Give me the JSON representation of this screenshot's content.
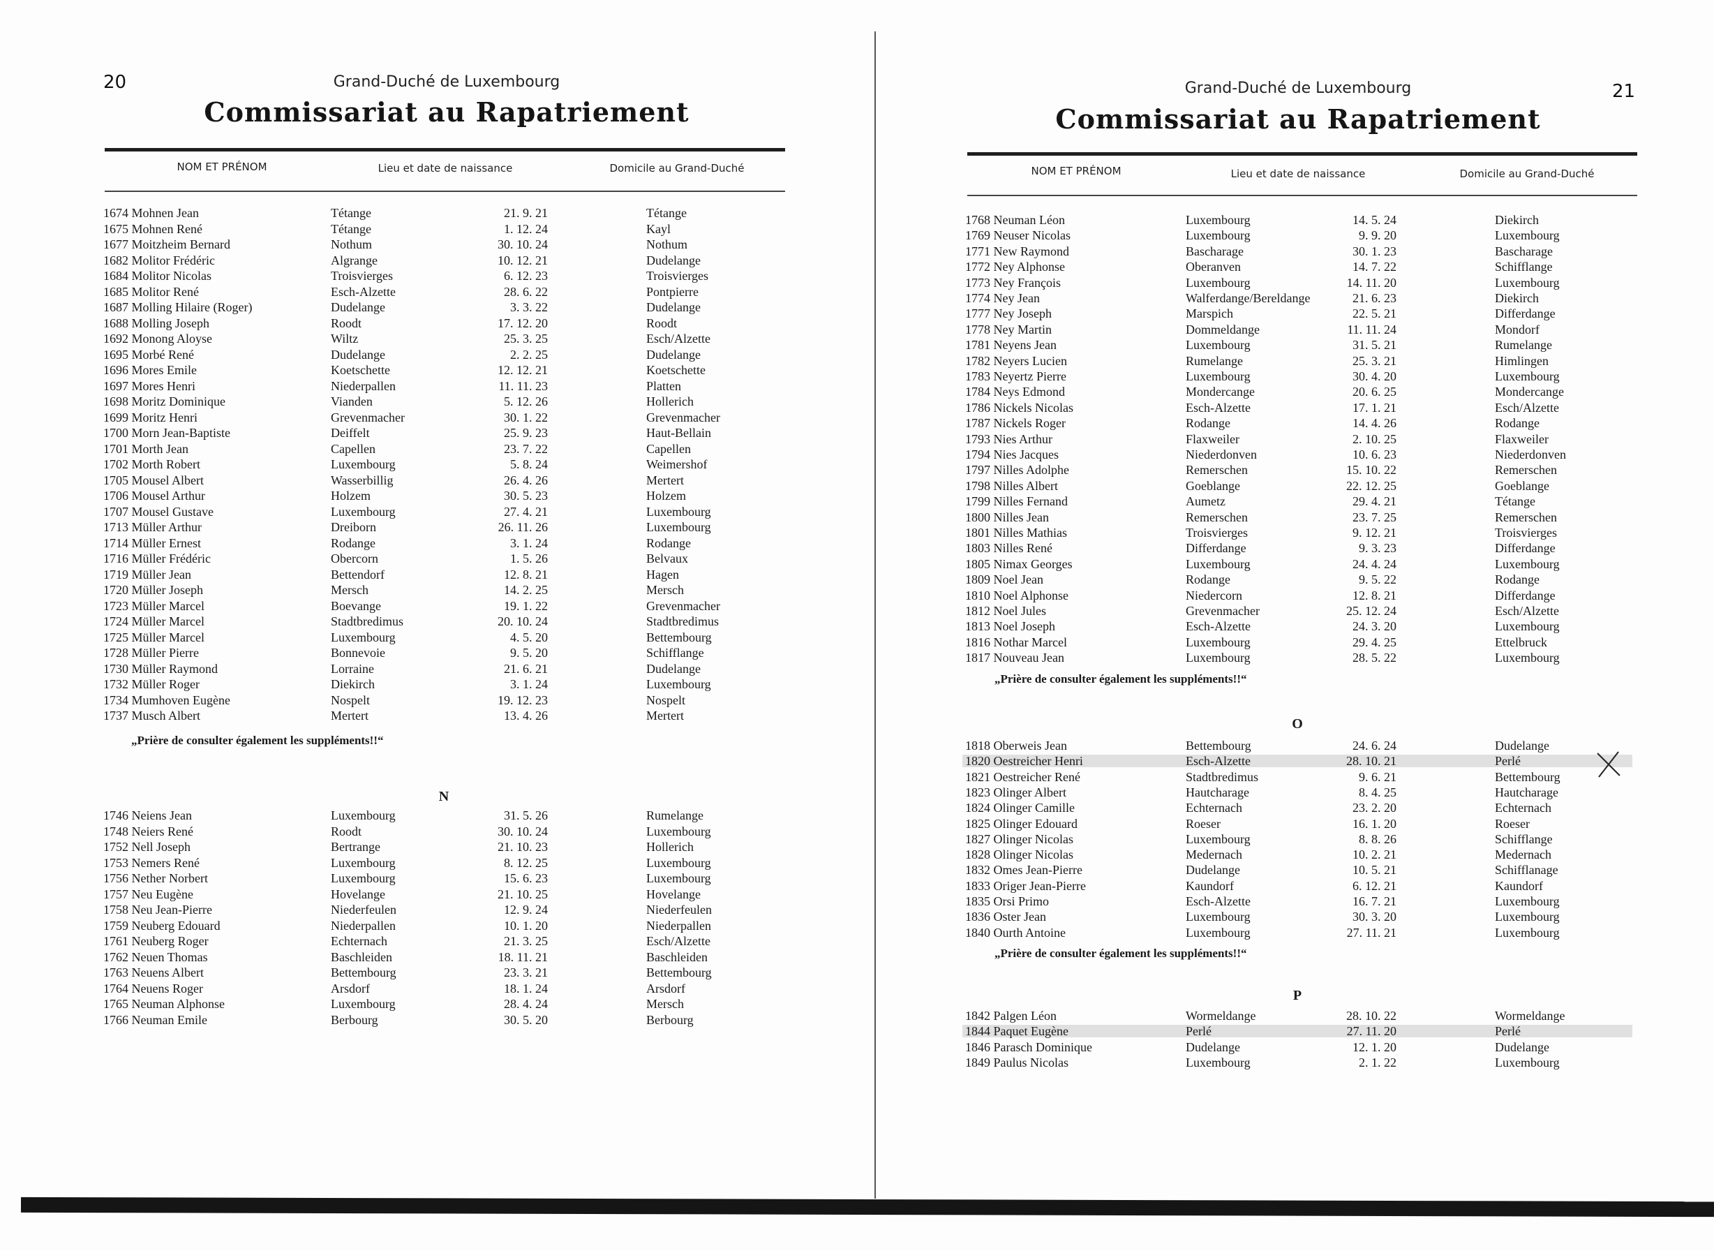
{
  "left_page": {
    "page_number": "20",
    "subtitle": "Grand-Duché de Luxembourg",
    "title": "Commissariat au Rapatriement",
    "columns": [
      "NOM ET PRÉNOM",
      "Lieu et date de naissance",
      "Domicile au Grand-Duché"
    ],
    "sections": [
      {
        "letter": "",
        "note": "„Prière de consulter également les suppléments!!“",
        "rows": [
          [
            "1674 Mohnen Jean",
            "Tétange",
            "21. 9. 21",
            "Tétange"
          ],
          [
            "1675 Mohnen René",
            "Tétange",
            "1. 12. 24",
            "Kayl"
          ],
          [
            "1677 Moitzheim Bernard",
            "Nothum",
            "30. 10. 24",
            "Nothum"
          ],
          [
            "1682 Molitor Frédéric",
            "Algrange",
            "10. 12. 21",
            "Dudelange"
          ],
          [
            "1684 Molitor Nicolas",
            "Troisvierges",
            "6. 12. 23",
            "Troisvierges"
          ],
          [
            "1685 Molitor René",
            "Esch-Alzette",
            "28. 6. 22",
            "Pontpierre"
          ],
          [
            "1687 Molling Hilaire (Roger)",
            "Dudelange",
            "3. 3. 22",
            "Dudelange"
          ],
          [
            "1688 Molling Joseph",
            "Roodt",
            "17. 12. 20",
            "Roodt"
          ],
          [
            "1692 Monong Aloyse",
            "Wiltz",
            "25. 3. 25",
            "Esch/Alzette"
          ],
          [
            "1695 Morbé René",
            "Dudelange",
            "2. 2. 25",
            "Dudelange"
          ],
          [
            "1696 Mores Emile",
            "Koetschette",
            "12. 12. 21",
            "Koetschette"
          ],
          [
            "1697 Mores Henri",
            "Niederpallen",
            "11. 11. 23",
            "Platten"
          ],
          [
            "1698 Moritz Dominique",
            "Vianden",
            "5. 12. 26",
            "Hollerich"
          ],
          [
            "1699 Moritz Henri",
            "Grevenmacher",
            "30. 1. 22",
            "Grevenmacher"
          ],
          [
            "1700 Morn Jean-Baptiste",
            "Deiffelt",
            "25. 9. 23",
            "Haut-Bellain"
          ],
          [
            "1701 Morth Jean",
            "Capellen",
            "23. 7. 22",
            "Capellen"
          ],
          [
            "1702 Morth Robert",
            "Luxembourg",
            "5. 8. 24",
            "Weimershof"
          ],
          [
            "1705 Mousel Albert",
            "Wasserbillig",
            "26. 4. 26",
            "Mertert"
          ],
          [
            "1706 Mousel Arthur",
            "Holzem",
            "30. 5. 23",
            "Holzem"
          ],
          [
            "1707 Mousel Gustave",
            "Luxembourg",
            "27. 4. 21",
            "Luxembourg"
          ],
          [
            "1713 Müller Arthur",
            "Dreiborn",
            "26. 11. 26",
            "Luxembourg"
          ],
          [
            "1714 Müller Ernest",
            "Rodange",
            "3. 1. 24",
            "Rodange"
          ],
          [
            "1716 Müller Frédéric",
            "Obercorn",
            "1. 5. 26",
            "Belvaux"
          ],
          [
            "1719 Müller Jean",
            "Bettendorf",
            "12. 8. 21",
            "Hagen"
          ],
          [
            "1720 Müller Joseph",
            "Mersch",
            "14. 2. 25",
            "Mersch"
          ],
          [
            "1723 Müller Marcel",
            "Boevange",
            "19. 1. 22",
            "Grevenmacher"
          ],
          [
            "1724 Müller Marcel",
            "Stadtbredimus",
            "20. 10. 24",
            "Stadtbredimus"
          ],
          [
            "1725 Müller Marcel",
            "Luxembourg",
            "4. 5. 20",
            "Bettembourg"
          ],
          [
            "1728 Müller Pierre",
            "Bonnevoie",
            "9. 5. 20",
            "Schifflange"
          ],
          [
            "1730 Müller Raymond",
            "Lorraine",
            "21. 6. 21",
            "Dudelange"
          ],
          [
            "1732 Müller Roger",
            "Diekirch",
            "3. 1. 24",
            "Luxembourg"
          ],
          [
            "1734 Mumhoven Eugène",
            "Nospelt",
            "19. 12. 23",
            "Nospelt"
          ],
          [
            "1737 Musch Albert",
            "Mertert",
            "13. 4. 26",
            "Mertert"
          ]
        ]
      },
      {
        "letter": "N",
        "note": "",
        "rows": [
          [
            "1746 Neiens Jean",
            "Luxembourg",
            "31. 5. 26",
            "Rumelange"
          ],
          [
            "1748 Neiers René",
            "Roodt",
            "30. 10. 24",
            "Luxembourg"
          ],
          [
            "1752 Nell Joseph",
            "Bertrange",
            "21. 10. 23",
            "Hollerich"
          ],
          [
            "1753 Nemers René",
            "Luxembourg",
            "8. 12. 25",
            "Luxembourg"
          ],
          [
            "1756 Nether Norbert",
            "Luxembourg",
            "15. 6. 23",
            "Luxembourg"
          ],
          [
            "1757 Neu Eugène",
            "Hovelange",
            "21. 10. 25",
            "Hovelange"
          ],
          [
            "1758 Neu Jean-Pierre",
            "Niederfeulen",
            "12. 9. 24",
            "Niederfeulen"
          ],
          [
            "1759 Neuberg Edouard",
            "Niederpallen",
            "10. 1. 20",
            "Niederpallen"
          ],
          [
            "1761 Neuberg Roger",
            "Echternach",
            "21. 3. 25",
            "Esch/Alzette"
          ],
          [
            "1762 Neuen Thomas",
            "Baschleiden",
            "18. 11. 21",
            "Baschleiden"
          ],
          [
            "1763 Neuens Albert",
            "Bettembourg",
            "23. 3. 21",
            "Bettembourg"
          ],
          [
            "1764 Neuens Roger",
            "Arsdorf",
            "18. 1. 24",
            "Arsdorf"
          ],
          [
            "1765 Neuman Alphonse",
            "Luxembourg",
            "28. 4. 24",
            "Mersch"
          ],
          [
            "1766 Neuman Emile",
            "Berbourg",
            "30. 5. 20",
            "Berbourg"
          ]
        ]
      }
    ]
  },
  "right_page": {
    "page_number": "21",
    "subtitle": "Grand-Duché de Luxembourg",
    "title": "Commissariat au Rapatriement",
    "columns": [
      "NOM ET PRÉNOM",
      "Lieu et date de naissance",
      "Domicile au Grand-Duché"
    ],
    "sections": [
      {
        "letter": "",
        "note": "„Prière de consulter également les suppléments!!“",
        "rows": [
          [
            "1768 Neuman Léon",
            "Luxembourg",
            "14. 5. 24",
            "Diekirch"
          ],
          [
            "1769 Neuser Nicolas",
            "Luxembourg",
            "9. 9. 20",
            "Luxembourg"
          ],
          [
            "1771 New Raymond",
            "Bascharage",
            "30. 1. 23",
            "Bascharage"
          ],
          [
            "1772 Ney Alphonse",
            "Oberanven",
            "14. 7. 22",
            "Schifflange"
          ],
          [
            "1773 Ney François",
            "Luxembourg",
            "14. 11. 20",
            "Luxembourg"
          ],
          [
            "1774 Ney Jean",
            "Walferdange/Bereldange",
            "21. 6. 23",
            "Diekirch"
          ],
          [
            "1777 Ney Joseph",
            "Marspich",
            "22. 5. 21",
            "Differdange"
          ],
          [
            "1778 Ney Martin",
            "Dommeldange",
            "11. 11. 24",
            "Mondorf"
          ],
          [
            "1781 Neyens Jean",
            "Luxembourg",
            "31. 5. 21",
            "Rumelange"
          ],
          [
            "1782 Neyers Lucien",
            "Rumelange",
            "25. 3. 21",
            "Himlingen"
          ],
          [
            "1783 Neyertz Pierre",
            "Luxembourg",
            "30. 4. 20",
            "Luxembourg"
          ],
          [
            "1784 Neys Edmond",
            "Mondercange",
            "20. 6. 25",
            "Mondercange"
          ],
          [
            "1786 Nickels Nicolas",
            "Esch-Alzette",
            "17. 1. 21",
            "Esch/Alzette"
          ],
          [
            "1787 Nickels Roger",
            "Rodange",
            "14. 4. 26",
            "Rodange"
          ],
          [
            "1793 Nies Arthur",
            "Flaxweiler",
            "2. 10. 25",
            "Flaxweiler"
          ],
          [
            "1794 Nies Jacques",
            "Niederdonven",
            "10. 6. 23",
            "Niederdonven"
          ],
          [
            "1797 Nilles Adolphe",
            "Remerschen",
            "15. 10. 22",
            "Remerschen"
          ],
          [
            "1798 Nilles Albert",
            "Goeblange",
            "22. 12. 25",
            "Goeblange"
          ],
          [
            "1799 Nilles Fernand",
            "Aumetz",
            "29. 4. 21",
            "Tétange"
          ],
          [
            "1800 Nilles Jean",
            "Remerschen",
            "23. 7. 25",
            "Remerschen"
          ],
          [
            "1801 Nilles Mathias",
            "Troisvierges",
            "9. 12. 21",
            "Troisvierges"
          ],
          [
            "1803 Nilles René",
            "Differdange",
            "9. 3. 23",
            "Differdange"
          ],
          [
            "1805 Nimax Georges",
            "Luxembourg",
            "24. 4. 24",
            "Luxembourg"
          ],
          [
            "1809 Noel Jean",
            "Rodange",
            "9. 5. 22",
            "Rodange"
          ],
          [
            "1810 Noel Alphonse",
            "Niedercorn",
            "12. 8. 21",
            "Differdange"
          ],
          [
            "1812 Noel Jules",
            "Grevenmacher",
            "25. 12. 24",
            "Esch/Alzette"
          ],
          [
            "1813 Noel Joseph",
            "Esch-Alzette",
            "24. 3. 20",
            "Luxembourg"
          ],
          [
            "1816 Nothar Marcel",
            "Luxembourg",
            "29. 4. 25",
            "Ettelbruck"
          ],
          [
            "1817 Nouveau Jean",
            "Luxembourg",
            "28. 5. 22",
            "Luxembourg"
          ]
        ]
      },
      {
        "letter": "O",
        "note": "„Prière de consulter également les suppléments!!“",
        "rows": [
          [
            "1818 Oberweis Jean",
            "Bettembourg",
            "24. 6. 24",
            "Dudelange"
          ],
          [
            "1820 Oestreicher Henri",
            "Esch-Alzette",
            "28. 10. 21",
            "Perlé"
          ],
          [
            "1821 Oestreicher René",
            "Stadtbredimus",
            "9. 6. 21",
            "Bettembourg"
          ],
          [
            "1823 Olinger Albert",
            "Hautcharage",
            "8. 4. 25",
            "Hautcharage"
          ],
          [
            "1824 Olinger Camille",
            "Echternach",
            "23. 2. 20",
            "Echternach"
          ],
          [
            "1825 Olinger Edouard",
            "Roeser",
            "16. 1. 20",
            "Roeser"
          ],
          [
            "1827 Olinger Nicolas",
            "Luxembourg",
            "8. 8. 26",
            "Schifflange"
          ],
          [
            "1828 Olinger Nicolas",
            "Medernach",
            "10. 2. 21",
            "Medernach"
          ],
          [
            "1832 Omes Jean-Pierre",
            "Dudelange",
            "10. 5. 21",
            "Schifflanage"
          ],
          [
            "1833 Origer Jean-Pierre",
            "Kaundorf",
            "6. 12. 21",
            "Kaundorf"
          ],
          [
            "1835 Orsi Primo",
            "Esch-Alzette",
            "16. 7. 21",
            "Luxembourg"
          ],
          [
            "1836 Oster Jean",
            "Luxembourg",
            "30. 3. 20",
            "Luxembourg"
          ],
          [
            "1840 Ourth Antoine",
            "Luxembourg",
            "27. 11. 21",
            "Luxembourg"
          ]
        ]
      },
      {
        "letter": "P",
        "note": "",
        "rows": [
          [
            "1842 Palgen Léon",
            "Wormeldange",
            "28. 10. 22",
            "Wormeldange"
          ],
          [
            "1844 Paquet Eugène",
            "Perlé",
            "27. 11. 20",
            "Perlé"
          ],
          [
            "1846 Parasch Dominique",
            "Dudelange",
            "12. 1. 20",
            "Dudelange"
          ],
          [
            "1849 Paulus Nicolas",
            "Luxembourg",
            "2. 1. 22",
            "Luxembourg"
          ]
        ]
      }
    ]
  }
}
